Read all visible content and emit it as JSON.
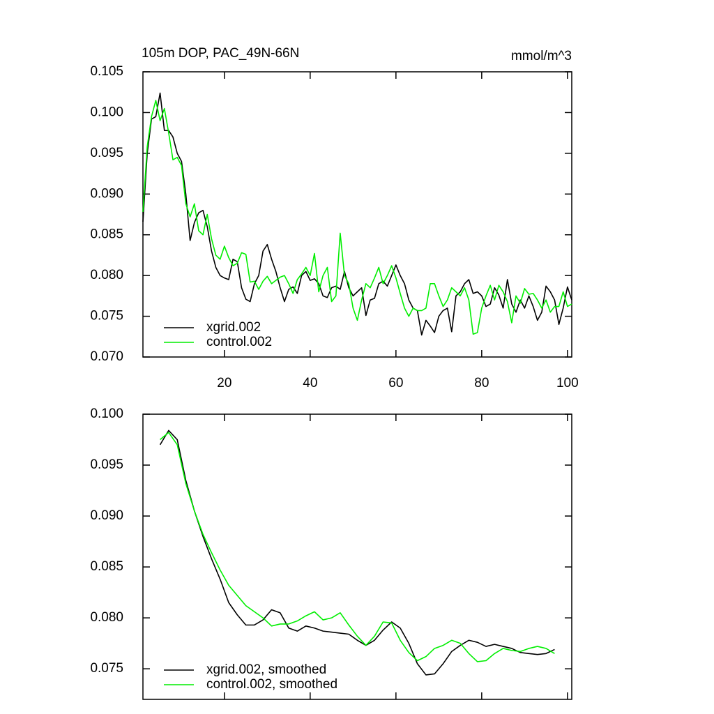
{
  "chart_data": [
    {
      "type": "line",
      "title": "105m DOP, PAC_49N-66N",
      "units": "mmol/m^3",
      "x": [
        1,
        2,
        3,
        4,
        5,
        6,
        7,
        8,
        9,
        10,
        11,
        12,
        13,
        14,
        15,
        16,
        17,
        18,
        19,
        20,
        21,
        22,
        23,
        24,
        25,
        26,
        27,
        28,
        29,
        30,
        31,
        32,
        33,
        34,
        35,
        36,
        37,
        38,
        39,
        40,
        41,
        42,
        43,
        44,
        45,
        46,
        47,
        48,
        49,
        50,
        51,
        52,
        53,
        54,
        55,
        56,
        57,
        58,
        59,
        60,
        61,
        62,
        63,
        64,
        65,
        66,
        67,
        68,
        69,
        70,
        71,
        72,
        73,
        74,
        75,
        76,
        77,
        78,
        79,
        80,
        81,
        82,
        83,
        84,
        85,
        86,
        87,
        88,
        89,
        90,
        91,
        92,
        93,
        94,
        95,
        96,
        97,
        98,
        99,
        100,
        101
      ],
      "series": [
        {
          "name": "xgrid.002",
          "color": "#000000",
          "values": [
            0.0866,
            0.095,
            0.0992,
            0.0995,
            0.1024,
            0.0978,
            0.0978,
            0.097,
            0.095,
            0.094,
            0.09,
            0.0843,
            0.0865,
            0.0877,
            0.088,
            0.086,
            0.083,
            0.081,
            0.08,
            0.0797,
            0.0795,
            0.082,
            0.0817,
            0.0785,
            0.0771,
            0.0768,
            0.079,
            0.08,
            0.083,
            0.0838,
            0.082,
            0.0805,
            0.0785,
            0.0768,
            0.0783,
            0.0786,
            0.0778,
            0.08,
            0.0805,
            0.0794,
            0.0796,
            0.079,
            0.0775,
            0.0773,
            0.0785,
            0.0787,
            0.0783,
            0.0805,
            0.0785,
            0.0775,
            0.078,
            0.0785,
            0.0751,
            0.077,
            0.0772,
            0.079,
            0.0793,
            0.0787,
            0.08,
            0.0813,
            0.08,
            0.079,
            0.077,
            0.076,
            0.0757,
            0.0727,
            0.0745,
            0.0738,
            0.073,
            0.075,
            0.0757,
            0.076,
            0.0731,
            0.0775,
            0.078,
            0.079,
            0.0795,
            0.0778,
            0.078,
            0.0775,
            0.0762,
            0.0765,
            0.0785,
            0.0776,
            0.076,
            0.0795,
            0.0765,
            0.0755,
            0.077,
            0.076,
            0.0775,
            0.0762,
            0.0745,
            0.0755,
            0.0787,
            0.078,
            0.077,
            0.074,
            0.076,
            0.0786,
            0.077
          ]
        },
        {
          "name": "control.002",
          "color": "#00ee00",
          "values": [
            0.0878,
            0.0958,
            0.0995,
            0.1015,
            0.099,
            0.1005,
            0.0975,
            0.0942,
            0.0945,
            0.0935,
            0.0888,
            0.0872,
            0.0888,
            0.0855,
            0.085,
            0.0875,
            0.0845,
            0.0825,
            0.082,
            0.0836,
            0.0822,
            0.0812,
            0.0815,
            0.0828,
            0.0826,
            0.0792,
            0.0793,
            0.0783,
            0.0793,
            0.0799,
            0.079,
            0.0794,
            0.0798,
            0.08,
            0.079,
            0.0778,
            0.0795,
            0.0802,
            0.081,
            0.08,
            0.0827,
            0.078,
            0.08,
            0.081,
            0.0768,
            0.0775,
            0.0852,
            0.08,
            0.079,
            0.076,
            0.0745,
            0.077,
            0.079,
            0.0785,
            0.0797,
            0.081,
            0.079,
            0.08,
            0.0812,
            0.0797,
            0.0778,
            0.076,
            0.075,
            0.076,
            0.0757,
            0.0757,
            0.076,
            0.079,
            0.079,
            0.0775,
            0.0762,
            0.077,
            0.0785,
            0.078,
            0.0775,
            0.0785,
            0.077,
            0.0728,
            0.073,
            0.076,
            0.0775,
            0.0788,
            0.077,
            0.0788,
            0.078,
            0.0768,
            0.0742,
            0.0775,
            0.0766,
            0.0784,
            0.0777,
            0.0778,
            0.077,
            0.076,
            0.077,
            0.0755,
            0.0762,
            0.0762,
            0.078,
            0.0762,
            0.0765
          ]
        }
      ],
      "xlim": [
        1,
        101
      ],
      "ylim": [
        0.07,
        0.105
      ],
      "xticks": [
        20,
        40,
        60,
        80,
        100
      ],
      "xtick_labels": true,
      "yticks": [
        {
          "value": 0.07,
          "label": "0.070"
        },
        0.075,
        {
          "value": 0.08,
          "label": "0.080"
        },
        0.085,
        {
          "value": 0.09,
          "label": "0.090"
        },
        0.095,
        {
          "value": 0.1,
          "label": "0.100"
        },
        0.105
      ],
      "legend": "lower left"
    },
    {
      "type": "line",
      "x": [
        5,
        7,
        9,
        11,
        13,
        15,
        17,
        19,
        21,
        23,
        25,
        27,
        29,
        31,
        33,
        35,
        37,
        39,
        41,
        43,
        45,
        47,
        49,
        51,
        53,
        55,
        57,
        59,
        61,
        63,
        65,
        67,
        69,
        71,
        73,
        75,
        77,
        79,
        81,
        83,
        85,
        87,
        89,
        91,
        93,
        95,
        97
      ],
      "series": [
        {
          "name": "xgrid.002, smoothed",
          "color": "#000000",
          "values": [
            0.097,
            0.0984,
            0.0975,
            0.0935,
            0.0905,
            0.088,
            0.0858,
            0.0838,
            0.0815,
            0.0803,
            0.0793,
            0.0793,
            0.0798,
            0.0808,
            0.0805,
            0.079,
            0.0787,
            0.0792,
            0.079,
            0.0787,
            0.0786,
            0.0785,
            0.0784,
            0.0778,
            0.0773,
            0.0778,
            0.0788,
            0.0796,
            0.079,
            0.0775,
            0.0755,
            0.0744,
            0.0745,
            0.0755,
            0.0767,
            0.0773,
            0.0778,
            0.0776,
            0.0772,
            0.0774,
            0.0772,
            0.077,
            0.0766,
            0.0765,
            0.0764,
            0.0765,
            0.0769
          ]
        },
        {
          "name": "control.002, smoothed",
          "color": "#00ee00",
          "values": [
            0.0975,
            0.0982,
            0.097,
            0.0932,
            0.0905,
            0.0882,
            0.0864,
            0.0847,
            0.0832,
            0.0822,
            0.0812,
            0.0806,
            0.08,
            0.0792,
            0.0794,
            0.0794,
            0.0797,
            0.0802,
            0.0806,
            0.0798,
            0.08,
            0.0805,
            0.0793,
            0.0782,
            0.0773,
            0.0782,
            0.0796,
            0.0795,
            0.0778,
            0.0766,
            0.0758,
            0.0762,
            0.077,
            0.0773,
            0.0778,
            0.0775,
            0.0765,
            0.0757,
            0.0758,
            0.0765,
            0.077,
            0.0768,
            0.0767,
            0.077,
            0.0772,
            0.077,
            0.0765
          ]
        }
      ],
      "xlim": [
        1,
        101
      ],
      "ylim": [
        0.072,
        0.1
      ],
      "xticks": [
        20,
        40,
        60,
        80,
        100
      ],
      "xtick_labels": false,
      "yticks": [
        0.075,
        {
          "value": 0.08,
          "label": "0.080"
        },
        0.085,
        {
          "value": 0.09,
          "label": "0.090"
        },
        0.095,
        {
          "value": 0.1,
          "label": "0.100"
        }
      ],
      "legend": "lower left"
    }
  ]
}
